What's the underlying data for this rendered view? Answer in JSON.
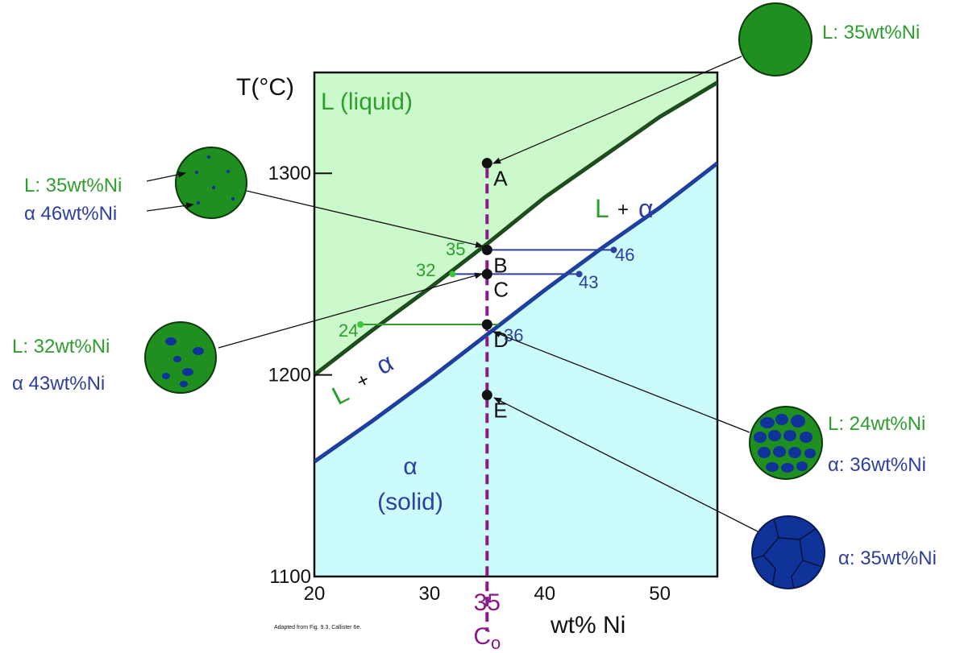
{
  "chart_data": {
    "type": "phase-diagram",
    "title": "",
    "xlabel": "wt% Ni",
    "ylabel": "T(°C)",
    "xlim": [
      20,
      55
    ],
    "ylim": [
      1100,
      1350
    ],
    "x_ticks": [
      "20",
      "30",
      "40",
      "50"
    ],
    "y_ticks": [
      "1100",
      "1200",
      "1300"
    ],
    "region_labels": {
      "liquid": "L (liquid)",
      "two_phase_L": "L",
      "two_phase_plus": "+",
      "two_phase_alpha": "α",
      "solid_alpha": "α",
      "solid": "(solid)"
    },
    "liquidus": [
      [
        20,
        1200
      ],
      [
        25,
        1222
      ],
      [
        30,
        1243
      ],
      [
        35,
        1265
      ],
      [
        40,
        1288
      ],
      [
        45,
        1308
      ],
      [
        50,
        1328
      ],
      [
        55,
        1345
      ]
    ],
    "solidus": [
      [
        20,
        1157
      ],
      [
        25,
        1177
      ],
      [
        30,
        1198
      ],
      [
        35,
        1220
      ],
      [
        40,
        1242
      ],
      [
        45,
        1263
      ],
      [
        50,
        1283
      ],
      [
        55,
        1305
      ]
    ],
    "composition_line": {
      "x": 35,
      "label": "35",
      "sublabel_main": "C",
      "sublabel_sub": "o"
    },
    "points": [
      {
        "label": "A",
        "x": 35,
        "t": 1305
      },
      {
        "label": "B",
        "x": 35,
        "t": 1262
      },
      {
        "label": "C",
        "x": 35,
        "t": 1250
      },
      {
        "label": "D",
        "x": 35,
        "t": 1225
      },
      {
        "label": "E",
        "x": 35,
        "t": 1190
      }
    ],
    "tie_lines": [
      {
        "t": 1262,
        "x_left": 35,
        "x_right": 46,
        "left_label": "35",
        "right_label": "46"
      },
      {
        "t": 1250,
        "x_left": 32,
        "x_right": 43,
        "left_label": "32",
        "right_label": "43"
      },
      {
        "t": 1225,
        "x_left": 24,
        "x_right": 36,
        "left_label": "24",
        "right_label": "36"
      }
    ]
  },
  "micrographs": {
    "a": {
      "l1": "L: 35wt%Ni"
    },
    "b": {
      "l1": "L: 35wt%Ni",
      "l2": "α  46wt%Ni"
    },
    "c": {
      "l1": "L:  32wt%Ni",
      "l2": "α  43wt%Ni"
    },
    "d": {
      "l1": "L: 24wt%Ni",
      "l2": "α: 36wt%Ni"
    },
    "e": {
      "l1": "α: 35wt%Ni"
    }
  },
  "footnote": "Adapted from Fig. 9.3, Callister 6e.",
  "colors": {
    "liquid": "#ccf9cc",
    "solid": "#ccfbfc",
    "liquidus": "#1d4d1d",
    "solidus": "#1f3f9e",
    "composition": "#8a1a8a",
    "liquid_grain": "#1f8f1f",
    "alpha_grain": "#10339a"
  }
}
